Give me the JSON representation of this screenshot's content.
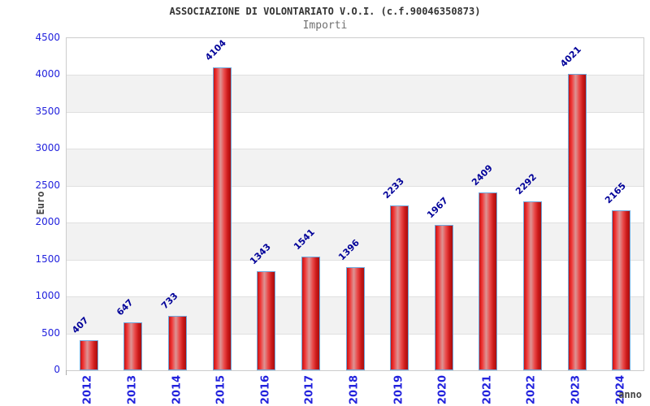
{
  "chart_data": {
    "type": "bar",
    "title": "ASSOCIAZIONE DI VOLONTARIATO V.O.I. (c.f.90046350873)",
    "subtitle": "Importi",
    "ylabel": "Euro",
    "xlabel": "anno",
    "categories": [
      "2012",
      "2013",
      "2014",
      "2015",
      "2016",
      "2017",
      "2018",
      "2019",
      "2020",
      "2021",
      "2022",
      "2023",
      "2024"
    ],
    "values": [
      407,
      647,
      733,
      4104,
      1343,
      1541,
      1396,
      2233,
      1967,
      2409,
      2292,
      4021,
      2165
    ],
    "ylim": [
      0,
      4500
    ],
    "ytick_step": 500,
    "yticks": [
      0,
      500,
      1000,
      1500,
      2000,
      2500,
      3000,
      3500,
      4000,
      4500
    ],
    "grid": "horizontal gridlines with alternating gray bands",
    "legend": "none",
    "colors": {
      "bar_main": "#e02020",
      "bar_dark": "#a80e0e",
      "bar_highlight": "#dc9494",
      "bar_border": "#6fa8dc",
      "tick_label": "#2222dd",
      "value_label": "#000099",
      "band": "#f2f2f2",
      "gridline": "#e0e0e0",
      "axis_title": "#444444",
      "title": "#333333",
      "subtitle": "#707070",
      "plot_border": "#cccccc"
    }
  }
}
